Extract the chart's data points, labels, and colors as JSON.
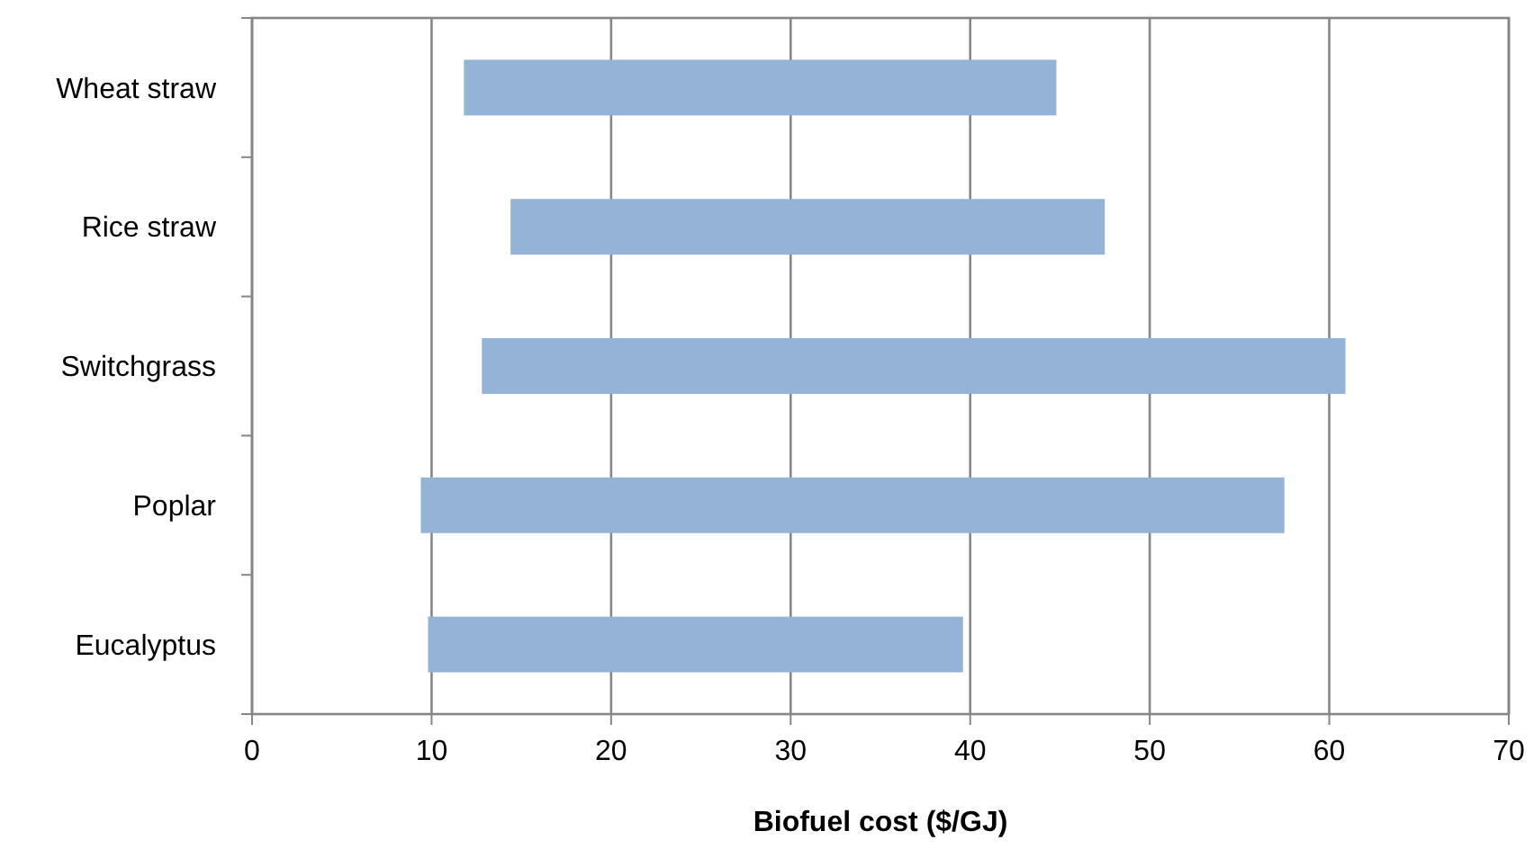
{
  "chart_data": {
    "type": "bar",
    "orientation": "horizontal",
    "xlabel": "Biofuel cost ($/GJ)",
    "categories": [
      "Wheat straw",
      "Rice straw",
      "Switchgrass",
      "Poplar",
      "Eucalyptus"
    ],
    "base": [
      11.8,
      14.4,
      12.8,
      9.4,
      9.8
    ],
    "values": [
      33,
      33.1,
      48.1,
      48.1,
      29.8
    ],
    "color": "#95b3d7",
    "xlim": [
      0,
      70
    ],
    "xticks": [
      0,
      10,
      20,
      30,
      40,
      50,
      60,
      70
    ],
    "grid": "x"
  }
}
